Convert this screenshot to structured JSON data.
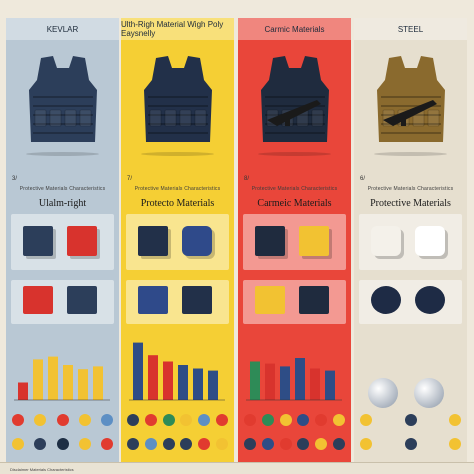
{
  "columns": [
    {
      "id": "kevlar",
      "header": "KEVLAR",
      "bg": "#b9c8d4",
      "number": "3/",
      "title": "Ulalm-right",
      "vest_color": "#2c3e5a",
      "accent": "#d8332d",
      "bars": [
        0.25,
        0.58,
        0.62,
        0.5,
        0.44,
        0.48
      ],
      "bar_colors": [
        "#d8332d",
        "#f2c232",
        "#f2c232",
        "#f2c232",
        "#f2c232",
        "#f2c232"
      ],
      "dots_row1": [
        "#e13b2f",
        "#f2c232",
        "#e13b2f",
        "#f2c232",
        "#5d8fc4"
      ],
      "dots_row2": [
        "#f2c232",
        "#2c3e5a",
        "#1d2e44",
        "#f2c232",
        "#e13b2f"
      ]
    },
    {
      "id": "uhmwpe",
      "header": "Ulth-Righ Material Wigh Poly Eaysnelly",
      "bg": "#f5cf34",
      "number": "7/",
      "title": "Protecto Materials",
      "vest_color": "#223049",
      "accent": "#2f4a8a",
      "bars": [
        0.82,
        0.64,
        0.55,
        0.5,
        0.45,
        0.42
      ],
      "bar_colors": [
        "#2e4d86",
        "#d8332d",
        "#d8332d",
        "#2e4d86",
        "#2e4d86",
        "#2e4d86"
      ],
      "dots_row1": [
        "#2c3e5a",
        "#e13b2f",
        "#2e8b57",
        "#f2c232",
        "#5d8fc4",
        "#e13b2f"
      ],
      "dots_row2": [
        "#2c3e5a",
        "#5d8fc4",
        "#2c3e5a",
        "#2c3e5a",
        "#e13b2f",
        "#f2c232"
      ]
    },
    {
      "id": "ceramic",
      "header": "Carmic Materials",
      "bg": "#e9463a",
      "number": "8/",
      "title": "Carmeic Materials",
      "vest_color": "#1f2b3e",
      "accent": "#f2c232",
      "bars": [
        0.55,
        0.52,
        0.48,
        0.6,
        0.45,
        0.42
      ],
      "bar_colors": [
        "#2e8b57",
        "#d8332d",
        "#2e4d86",
        "#2e4d86",
        "#d8332d",
        "#2e4d86"
      ],
      "dots_row1": [
        "#e13b2f",
        "#2e8b57",
        "#f2c232",
        "#2e4d86",
        "#e13b2f",
        "#f2c232"
      ],
      "dots_row2": [
        "#2c3e5a",
        "#2e4d86",
        "#e13b2f",
        "#2c3e5a",
        "#f2c232",
        "#2c3e5a"
      ]
    },
    {
      "id": "steel",
      "header": "STEEL",
      "bg": "#e6dfcf",
      "number": "6/",
      "title": "Protective Materials",
      "vest_color": "#8a6a2e",
      "accent": "#1e2b45",
      "bars": [],
      "bar_colors": [],
      "dots_row1": [
        "#f2c232",
        "#2c3e5a",
        "#f2c232"
      ],
      "dots_row2": [
        "#f2c232",
        "#2c3e5a",
        "#f2c232"
      ]
    }
  ],
  "section_subtitle": "Protective Materials Characteristics",
  "footer_note": "Disclaimer Materials Characteristics"
}
